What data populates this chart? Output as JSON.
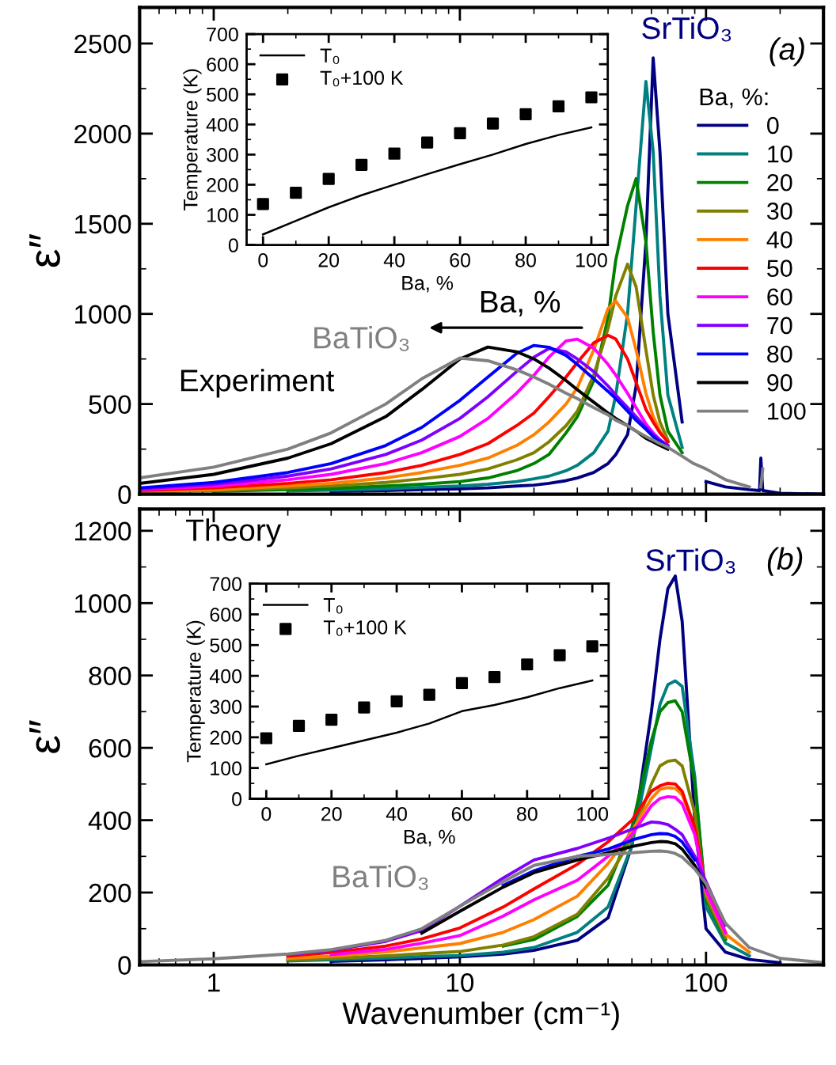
{
  "chart_data": [
    {
      "type": "line",
      "ylabel": "ε″",
      "legend_title": "Ba, %:",
      "legend": "right",
      "log": "x",
      "tick_labels": "y",
      "xlim": [
        0.5,
        300
      ],
      "xticks": [
        1,
        10,
        100
      ],
      "ylim": [
        0,
        2700
      ],
      "yticks": [
        0,
        500,
        1000,
        1500,
        2000,
        2500
      ],
      "annotations": [
        "SrTiO₃",
        "(a)",
        "Ba, %",
        "BaTiO₃",
        "Experiment"
      ],
      "x": [
        0.5,
        1,
        2,
        3,
        5,
        7,
        10,
        13,
        17,
        20,
        23,
        27,
        30,
        35,
        40,
        43,
        48,
        52,
        57,
        61,
        65,
        70,
        80,
        89,
        100,
        120,
        150,
        165,
        167,
        170,
        200,
        300
      ],
      "series": [
        {
          "name": "0",
          "color": "#000080",
          "values": [
            null,
            null,
            null,
            15,
            20,
            25,
            30,
            35,
            45,
            50,
            60,
            75,
            90,
            120,
            170,
            220,
            330,
            600,
            1400,
            2420,
            1900,
            1000,
            400,
            null,
            70,
            40,
            25,
            20,
            200,
            20,
            5,
            0
          ]
        },
        {
          "name": "10",
          "color": "#008080",
          "values": [
            null,
            null,
            18,
            22,
            30,
            38,
            45,
            55,
            70,
            85,
            100,
            130,
            160,
            230,
            350,
            550,
            1000,
            1600,
            2290,
            1900,
            1100,
            550,
            260,
            null,
            null,
            null,
            null,
            null,
            null,
            null,
            null,
            null
          ]
        },
        {
          "name": "20",
          "color": "#008000",
          "values": [
            null,
            15,
            25,
            32,
            45,
            55,
            70,
            90,
            130,
            170,
            220,
            340,
            430,
            630,
            980,
            1300,
            1600,
            1750,
            1400,
            900,
            550,
            350,
            230,
            null,
            null,
            null,
            null,
            null,
            null,
            null,
            null,
            null
          ]
        },
        {
          "name": "30",
          "color": "#808000",
          "values": [
            12,
            20,
            35,
            45,
            65,
            85,
            110,
            140,
            190,
            230,
            290,
            380,
            460,
            660,
            920,
            1100,
            1276,
            1150,
            800,
            550,
            400,
            300,
            null,
            null,
            null,
            null,
            null,
            null,
            null,
            null,
            null,
            null
          ]
        },
        {
          "name": "40",
          "color": "#ff8000",
          "values": [
            15,
            25,
            45,
            60,
            90,
            120,
            160,
            200,
            270,
            330,
            400,
            500,
            590,
            800,
            1030,
            1071,
            980,
            800,
            560,
            430,
            350,
            290,
            null,
            null,
            null,
            null,
            null,
            null,
            null,
            null,
            null,
            null
          ]
        },
        {
          "name": "50",
          "color": "#ff0000",
          "values": [
            20,
            35,
            60,
            80,
            120,
            160,
            220,
            280,
            380,
            450,
            540,
            650,
            730,
            840,
            881,
            860,
            750,
            620,
            470,
            400,
            340,
            290,
            null,
            null,
            null,
            null,
            null,
            null,
            null,
            null,
            null,
            null
          ]
        },
        {
          "name": "60",
          "color": "#ff00ff",
          "values": [
            25,
            45,
            80,
            110,
            170,
            230,
            320,
            420,
            560,
            660,
            760,
            850,
            860,
            810,
            720,
            660,
            560,
            480,
            390,
            340,
            300,
            270,
            null,
            null,
            null,
            null,
            null,
            null,
            null,
            null,
            null,
            null
          ]
        },
        {
          "name": "70",
          "color": "#8000ff",
          "values": [
            30,
            55,
            100,
            140,
            220,
            300,
            420,
            540,
            680,
            760,
            808,
            790,
            750,
            680,
            600,
            550,
            480,
            430,
            370,
            330,
            300,
            270,
            null,
            null,
            null,
            null,
            null,
            null,
            null,
            null,
            null,
            null
          ]
        },
        {
          "name": "80",
          "color": "#0000ff",
          "values": [
            35,
            65,
            120,
            170,
            270,
            370,
            520,
            650,
            780,
            825,
            815,
            770,
            720,
            640,
            570,
            530,
            460,
            410,
            360,
            320,
            290,
            260,
            null,
            null,
            null,
            null,
            null,
            null,
            null,
            null,
            null,
            null
          ]
        },
        {
          "name": "90",
          "color": "#000000",
          "values": [
            60,
            110,
            200,
            280,
            430,
            580,
            750,
            816,
            790,
            750,
            700,
            630,
            580,
            510,
            450,
            420,
            380,
            350,
            310,
            290,
            270,
            250,
            null,
            null,
            null,
            null,
            null,
            null,
            null,
            null,
            null,
            null
          ]
        },
        {
          "name": "100",
          "color": "#808080",
          "values": [
            90,
            150,
            250,
            340,
            500,
            640,
            755,
            740,
            690,
            650,
            610,
            560,
            530,
            480,
            440,
            410,
            380,
            350,
            320,
            300,
            280,
            260,
            210,
            170,
            140,
            80,
            40,
            null,
            40,
            140,
            null,
            null
          ]
        }
      ]
    },
    {
      "type": "line",
      "xlabel": "Ba, %",
      "ylabel": "Temperature (K)",
      "legend": "top left",
      "xlim": [
        -5,
        105
      ],
      "xticks": [
        0,
        20,
        40,
        60,
        80,
        100
      ],
      "ylim": [
        0,
        700
      ],
      "yticks": [
        0,
        100,
        200,
        300,
        400,
        500,
        600,
        700
      ],
      "x": [
        0,
        10,
        20,
        30,
        40,
        50,
        60,
        70,
        80,
        90,
        100
      ],
      "series": [
        {
          "name": "T₀",
          "type": "line",
          "color": "#000000",
          "values": [
            35,
            80,
            125,
            165,
            200,
            235,
            268,
            300,
            335,
            365,
            390
          ]
        },
        {
          "name": "T₀+100 K",
          "type": "scatter",
          "marker": "square",
          "color": "#000000",
          "values": [
            136,
            173,
            219,
            266,
            303,
            340,
            371,
            403,
            434,
            460,
            490
          ]
        }
      ]
    },
    {
      "type": "line",
      "ylabel": "ε″",
      "xlabel": "Wavenumber (cm⁻¹)",
      "log": "x",
      "xlim": [
        0.5,
        300
      ],
      "xticks": [
        1,
        10,
        100
      ],
      "ylim": [
        0,
        1260
      ],
      "yticks": [
        0,
        200,
        400,
        600,
        800,
        1000,
        1200
      ],
      "annotations": [
        "Theory",
        "SrTiO₃",
        "(b)",
        "BaTiO₃"
      ],
      "x": [
        0.5,
        1,
        2,
        3,
        5,
        7,
        10,
        15,
        20,
        30,
        40,
        50,
        60,
        65,
        70,
        75,
        80,
        90,
        100,
        120,
        150,
        200,
        300
      ],
      "series": [
        {
          "color": "#000080",
          "values": [
            null,
            null,
            null,
            10,
            14,
            18,
            22,
            30,
            40,
            68,
            130,
            330,
            700,
            900,
            1040,
            1075,
            950,
            400,
            100,
            35,
            15,
            6,
            null
          ]
        },
        {
          "color": "#008080",
          "values": [
            null,
            null,
            11,
            14,
            19,
            23,
            26,
            35,
            48,
            90,
            160,
            330,
            600,
            720,
            775,
            785,
            770,
            520,
            160,
            60,
            25,
            null,
            null
          ]
        },
        {
          "color": "#008000",
          "values": [
            null,
            null,
            null,
            null,
            null,
            null,
            null,
            52,
            70,
            134,
            220,
            380,
            620,
            700,
            725,
            730,
            700,
            500,
            180,
            70,
            null,
            null,
            null
          ]
        },
        {
          "color": "#808000",
          "values": [
            null,
            null,
            14,
            18,
            25,
            31,
            37,
            55,
            78,
            140,
            240,
            350,
            500,
            550,
            563,
            566,
            550,
            420,
            190,
            75,
            null,
            null,
            null
          ]
        },
        {
          "color": "#ff8000",
          "values": [
            null,
            null,
            18,
            24,
            36,
            47,
            59,
            90,
            125,
            190,
            280,
            370,
            460,
            485,
            490,
            488,
            470,
            380,
            200,
            85,
            35,
            null,
            null
          ]
        },
        {
          "color": "#ff0000",
          "values": [
            null,
            null,
            24,
            34,
            52,
            72,
            102,
            160,
            210,
            278,
            340,
            400,
            480,
            495,
            502,
            500,
            480,
            380,
            210,
            90,
            null,
            null,
            null
          ]
        },
        {
          "color": "#ff00ff",
          "values": [
            null,
            null,
            null,
            28,
            43,
            60,
            81,
            135,
            180,
            234,
            300,
            360,
            440,
            460,
            465,
            463,
            445,
            360,
            205,
            88,
            null,
            null,
            null
          ]
        },
        {
          "color": "#8000ff",
          "values": [
            null,
            null,
            28,
            40,
            65,
            95,
            162,
            240,
            290,
            322,
            350,
            375,
            395,
            393,
            388,
            375,
            360,
            300,
            230,
            110,
            null,
            null,
            null
          ]
        },
        {
          "color": "#0000ff",
          "values": [
            null,
            null,
            null,
            null,
            null,
            null,
            null,
            220,
            260,
            300,
            320,
            345,
            360,
            363,
            362,
            355,
            340,
            290,
            null,
            null,
            null,
            null,
            null
          ]
        },
        {
          "color": "#000000",
          "values": [
            null,
            null,
            null,
            null,
            null,
            88,
            148,
            215,
            255,
            290,
            310,
            327,
            338,
            341,
            340,
            335,
            320,
            275,
            215,
            null,
            null,
            null,
            null
          ]
        },
        {
          "color": "#808080",
          "values": [
            9,
            17,
            30,
            42,
            68,
            100,
            162,
            230,
            275,
            300,
            305,
            310,
            314,
            315,
            313,
            308,
            298,
            265,
            225,
            115,
            48,
            18,
            6
          ]
        }
      ]
    },
    {
      "type": "line",
      "xlabel": "Ba, %",
      "ylabel": "Temperature (K)",
      "legend": "top left",
      "xlim": [
        -5,
        105
      ],
      "xticks": [
        0,
        20,
        40,
        60,
        80,
        100
      ],
      "ylim": [
        0,
        700
      ],
      "yticks": [
        0,
        100,
        200,
        300,
        400,
        500,
        600,
        700
      ],
      "x": [
        0,
        10,
        20,
        30,
        40,
        50,
        60,
        70,
        80,
        90,
        100
      ],
      "series": [
        {
          "name": "T₀",
          "type": "line",
          "color": "#000000",
          "values": [
            112,
            140,
            165,
            190,
            215,
            245,
            285,
            305,
            330,
            360,
            385
          ]
        },
        {
          "name": "T₀+100 K",
          "type": "scatter",
          "marker": "square",
          "color": "#000000",
          "values": [
            197,
            237,
            257,
            297,
            317,
            338,
            376,
            396,
            437,
            467,
            496
          ]
        }
      ]
    }
  ]
}
